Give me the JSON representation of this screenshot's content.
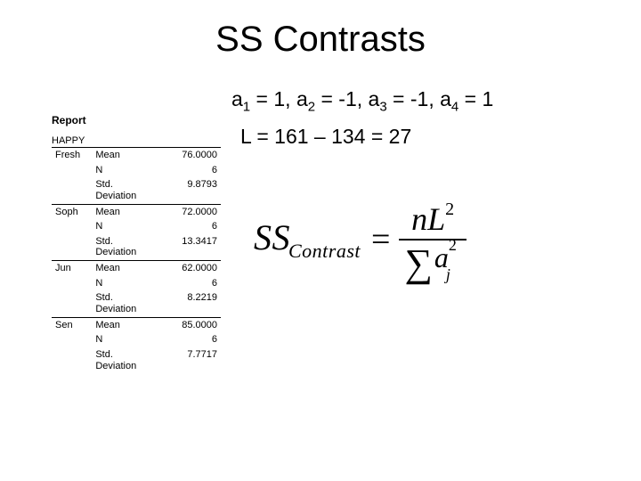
{
  "title": "SS Contrasts",
  "coeff_text": {
    "a1": "a",
    "s1": "1",
    "eq1": " = 1, ",
    "a2": "a",
    "s2": "2",
    "eq2": " = -1, ",
    "a3": "a",
    "s3": "3",
    "eq3": " = -1, ",
    "a4": "a",
    "s4": "4",
    "eq4": " = 1"
  },
  "l_line": "L = 161 – 134 = 27",
  "report": {
    "title": "Report",
    "var": "HAPPY",
    "groups": [
      {
        "name": "Fresh",
        "mean": "76.0000",
        "n": "6",
        "sd": "9.8793"
      },
      {
        "name": "Soph",
        "mean": "72.0000",
        "n": "6",
        "sd": "13.3417"
      },
      {
        "name": "Jun",
        "mean": "62.0000",
        "n": "6",
        "sd": "8.2219"
      },
      {
        "name": "Sen",
        "mean": "85.0000",
        "n": "6",
        "sd": "7.7717"
      }
    ],
    "stat_labels": {
      "mean": "Mean",
      "n": "N",
      "sd1": "Std.",
      "sd2": "Deviation"
    }
  },
  "formula": {
    "ss": "SS",
    "sub": "Contrast",
    "eq": "=",
    "num_n": "n",
    "num_L": "L",
    "num_exp": "2",
    "sigma": "∑",
    "den_a": "a",
    "den_exp": "2",
    "den_sub": "j"
  }
}
